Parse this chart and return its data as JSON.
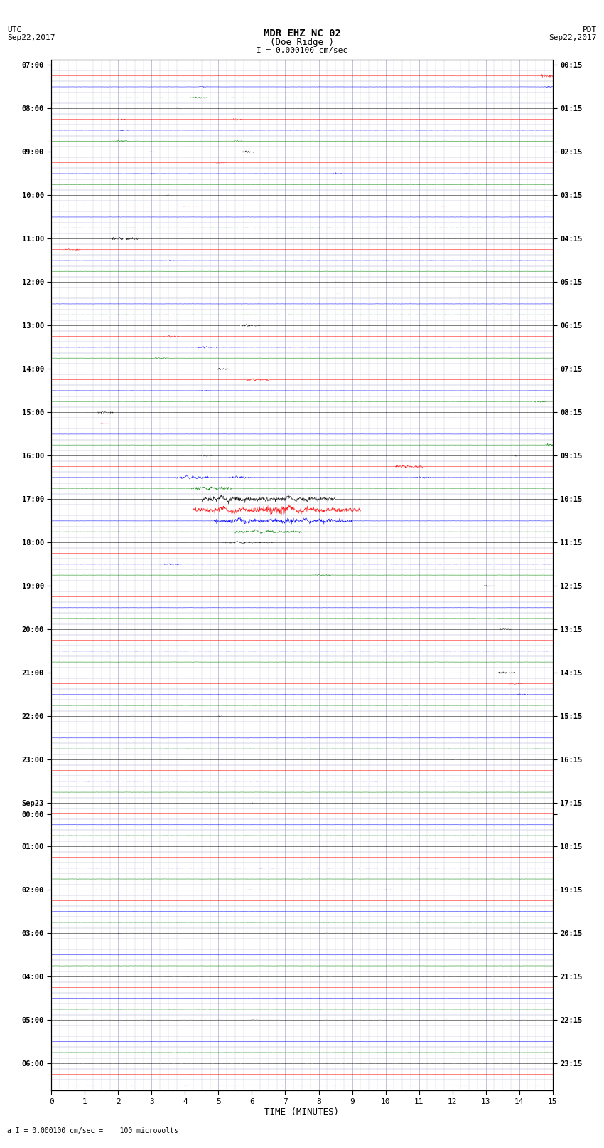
{
  "title_line1": "MDR EHZ NC 02",
  "title_line2": "(Doe Ridge )",
  "scale_label": "I = 0.000100 cm/sec",
  "footer_label": "a I = 0.000100 cm/sec =    100 microvolts",
  "utc_label": "UTC",
  "utc_date": "Sep22,2017",
  "pdt_label": "PDT",
  "pdt_date": "Sep22,2017",
  "xlabel": "TIME (MINUTES)",
  "bg_color": "#ffffff",
  "plot_bg_color": "#ffffff",
  "grid_color": "#aaaacc",
  "trace_colors": [
    "black",
    "red",
    "blue",
    "green"
  ],
  "left_times": [
    "07:00",
    "",
    "",
    "",
    "08:00",
    "",
    "",
    "",
    "09:00",
    "",
    "",
    "",
    "10:00",
    "",
    "",
    "",
    "11:00",
    "",
    "",
    "",
    "12:00",
    "",
    "",
    "",
    "13:00",
    "",
    "",
    "",
    "14:00",
    "",
    "",
    "",
    "15:00",
    "",
    "",
    "",
    "16:00",
    "",
    "",
    "",
    "17:00",
    "",
    "",
    "",
    "18:00",
    "",
    "",
    "",
    "19:00",
    "",
    "",
    "",
    "20:00",
    "",
    "",
    "",
    "21:00",
    "",
    "",
    "",
    "22:00",
    "",
    "",
    "",
    "23:00",
    "",
    "",
    "",
    "Sep23",
    "00:00",
    "",
    "",
    "01:00",
    "",
    "",
    "",
    "02:00",
    "",
    "",
    "",
    "03:00",
    "",
    "",
    "",
    "04:00",
    "",
    "",
    "",
    "05:00",
    "",
    "",
    "",
    "06:00",
    "",
    ""
  ],
  "right_times": [
    "00:15",
    "",
    "",
    "",
    "01:15",
    "",
    "",
    "",
    "02:15",
    "",
    "",
    "",
    "03:15",
    "",
    "",
    "",
    "04:15",
    "",
    "",
    "",
    "05:15",
    "",
    "",
    "",
    "06:15",
    "",
    "",
    "",
    "07:15",
    "",
    "",
    "",
    "08:15",
    "",
    "",
    "",
    "09:15",
    "",
    "",
    "",
    "10:15",
    "",
    "",
    "",
    "11:15",
    "",
    "",
    "",
    "12:15",
    "",
    "",
    "",
    "13:15",
    "",
    "",
    "",
    "14:15",
    "",
    "",
    "",
    "15:15",
    "",
    "",
    "",
    "16:15",
    "",
    "",
    "",
    "17:15",
    "",
    "",
    "",
    "18:15",
    "",
    "",
    "",
    "19:15",
    "",
    "",
    "",
    "20:15",
    "",
    "",
    "",
    "21:15",
    "",
    "",
    "",
    "22:15",
    "",
    "",
    "",
    "23:15",
    "",
    ""
  ],
  "xmin": 0,
  "xmax": 15,
  "xticks": [
    0,
    1,
    2,
    3,
    4,
    5,
    6,
    7,
    8,
    9,
    10,
    11,
    12,
    13,
    14,
    15
  ],
  "seed": 12345,
  "base_noise": 0.006,
  "events": [
    {
      "row": 2,
      "t": 4.5,
      "amp": 0.08,
      "dur": 0.3
    },
    {
      "row": 3,
      "t": 4.3,
      "amp": 0.12,
      "dur": 0.5
    },
    {
      "row": 4,
      "t": 3.8,
      "amp": 0.07,
      "dur": 0.2
    },
    {
      "row": 5,
      "t": 2.0,
      "amp": 0.1,
      "dur": 0.4
    },
    {
      "row": 5,
      "t": 5.5,
      "amp": 0.12,
      "dur": 0.3
    },
    {
      "row": 6,
      "t": 2.1,
      "amp": 0.08,
      "dur": 0.3
    },
    {
      "row": 7,
      "t": 2.0,
      "amp": 0.12,
      "dur": 0.4
    },
    {
      "row": 7,
      "t": 5.5,
      "amp": 0.08,
      "dur": 0.3
    },
    {
      "row": 8,
      "t": 3.0,
      "amp": 0.08,
      "dur": 0.2
    },
    {
      "row": 8,
      "t": 5.8,
      "amp": 0.15,
      "dur": 0.4
    },
    {
      "row": 9,
      "t": 5.0,
      "amp": 0.09,
      "dur": 0.3
    },
    {
      "row": 10,
      "t": 3.0,
      "amp": 0.07,
      "dur": 0.2
    },
    {
      "row": 10,
      "t": 8.5,
      "amp": 0.12,
      "dur": 0.3
    },
    {
      "row": 12,
      "t": 3.5,
      "amp": 0.06,
      "dur": 0.2
    },
    {
      "row": 13,
      "t": 4.0,
      "amp": 0.06,
      "dur": 0.2
    },
    {
      "row": 16,
      "t": 2.0,
      "amp": 0.25,
      "dur": 0.8
    },
    {
      "row": 17,
      "t": 0.5,
      "amp": 0.12,
      "dur": 0.5
    },
    {
      "row": 18,
      "t": 3.5,
      "amp": 0.08,
      "dur": 0.3
    },
    {
      "row": 20,
      "t": 13.5,
      "amp": 0.06,
      "dur": 0.2
    },
    {
      "row": 24,
      "t": 5.8,
      "amp": 0.15,
      "dur": 0.6
    },
    {
      "row": 25,
      "t": 3.5,
      "amp": 0.15,
      "dur": 0.5
    },
    {
      "row": 26,
      "t": 4.5,
      "amp": 0.18,
      "dur": 0.6
    },
    {
      "row": 27,
      "t": 3.2,
      "amp": 0.12,
      "dur": 0.4
    },
    {
      "row": 28,
      "t": 5.0,
      "amp": 0.12,
      "dur": 0.4
    },
    {
      "row": 29,
      "t": 6.0,
      "amp": 0.2,
      "dur": 0.7
    },
    {
      "row": 30,
      "t": 4.5,
      "amp": 0.08,
      "dur": 0.3
    },
    {
      "row": 31,
      "t": 14.5,
      "amp": 0.12,
      "dur": 0.4
    },
    {
      "row": 32,
      "t": 1.5,
      "amp": 0.15,
      "dur": 0.5
    },
    {
      "row": 33,
      "t": 1.5,
      "amp": 0.08,
      "dur": 0.3
    },
    {
      "row": 36,
      "t": 13.8,
      "amp": 0.08,
      "dur": 0.3
    },
    {
      "row": 36,
      "t": 4.5,
      "amp": 0.12,
      "dur": 0.4
    },
    {
      "row": 37,
      "t": 10.5,
      "amp": 0.22,
      "dur": 0.8
    },
    {
      "row": 38,
      "t": 4.0,
      "amp": 0.25,
      "dur": 1.0
    },
    {
      "row": 38,
      "t": 5.5,
      "amp": 0.18,
      "dur": 0.7
    },
    {
      "row": 38,
      "t": 11.0,
      "amp": 0.15,
      "dur": 0.5
    },
    {
      "row": 39,
      "t": 4.5,
      "amp": 0.3,
      "dur": 1.2
    },
    {
      "row": 40,
      "t": 5.0,
      "amp": 0.5,
      "dur": 2.0
    },
    {
      "row": 40,
      "t": 7.0,
      "amp": 0.45,
      "dur": 2.0
    },
    {
      "row": 41,
      "t": 5.0,
      "amp": 0.55,
      "dur": 3.0
    },
    {
      "row": 41,
      "t": 7.0,
      "amp": 0.5,
      "dur": 3.0
    },
    {
      "row": 42,
      "t": 5.5,
      "amp": 0.45,
      "dur": 2.5
    },
    {
      "row": 42,
      "t": 7.5,
      "amp": 0.4,
      "dur": 2.0
    },
    {
      "row": 43,
      "t": 6.0,
      "amp": 0.25,
      "dur": 2.0
    },
    {
      "row": 44,
      "t": 5.5,
      "amp": 0.15,
      "dur": 1.5
    },
    {
      "row": 45,
      "t": 7.0,
      "amp": 0.08,
      "dur": 0.5
    },
    {
      "row": 46,
      "t": 3.5,
      "amp": 0.1,
      "dur": 0.5
    },
    {
      "row": 47,
      "t": 8.0,
      "amp": 0.12,
      "dur": 0.5
    },
    {
      "row": 48,
      "t": 13.0,
      "amp": 0.1,
      "dur": 0.4
    },
    {
      "row": 52,
      "t": 13.5,
      "amp": 0.1,
      "dur": 0.4
    },
    {
      "row": 60,
      "t": 5.0,
      "amp": 0.06,
      "dur": 0.2
    },
    {
      "row": 64,
      "t": 12.0,
      "amp": 0.06,
      "dur": 0.2
    },
    {
      "row": 68,
      "t": 6.0,
      "amp": 0.05,
      "dur": 0.2
    },
    {
      "row": 72,
      "t": 8.0,
      "amp": 0.05,
      "dur": 0.2
    },
    {
      "row": 76,
      "t": 10.0,
      "amp": 0.05,
      "dur": 0.2
    },
    {
      "row": 80,
      "t": 2.0,
      "amp": 0.05,
      "dur": 0.2
    },
    {
      "row": 84,
      "t": 4.0,
      "amp": 0.05,
      "dur": 0.2
    },
    {
      "row": 88,
      "t": 6.0,
      "amp": 0.05,
      "dur": 0.2
    },
    {
      "row": 1,
      "t": 14.8,
      "amp": 0.25,
      "dur": 0.5
    },
    {
      "row": 2,
      "t": 14.8,
      "amp": 0.15,
      "dur": 0.4
    },
    {
      "row": 35,
      "t": 14.9,
      "amp": 0.3,
      "dur": 0.5
    },
    {
      "row": 56,
      "t": 13.5,
      "amp": 0.15,
      "dur": 0.5
    },
    {
      "row": 57,
      "t": 13.8,
      "amp": 0.1,
      "dur": 0.4
    },
    {
      "row": 58,
      "t": 14.0,
      "amp": 0.12,
      "dur": 0.4
    },
    {
      "row": 20,
      "t": 8.5,
      "amp": 0.06,
      "dur": 0.2
    },
    {
      "row": 21,
      "t": 8.5,
      "amp": 0.06,
      "dur": 0.2
    }
  ]
}
